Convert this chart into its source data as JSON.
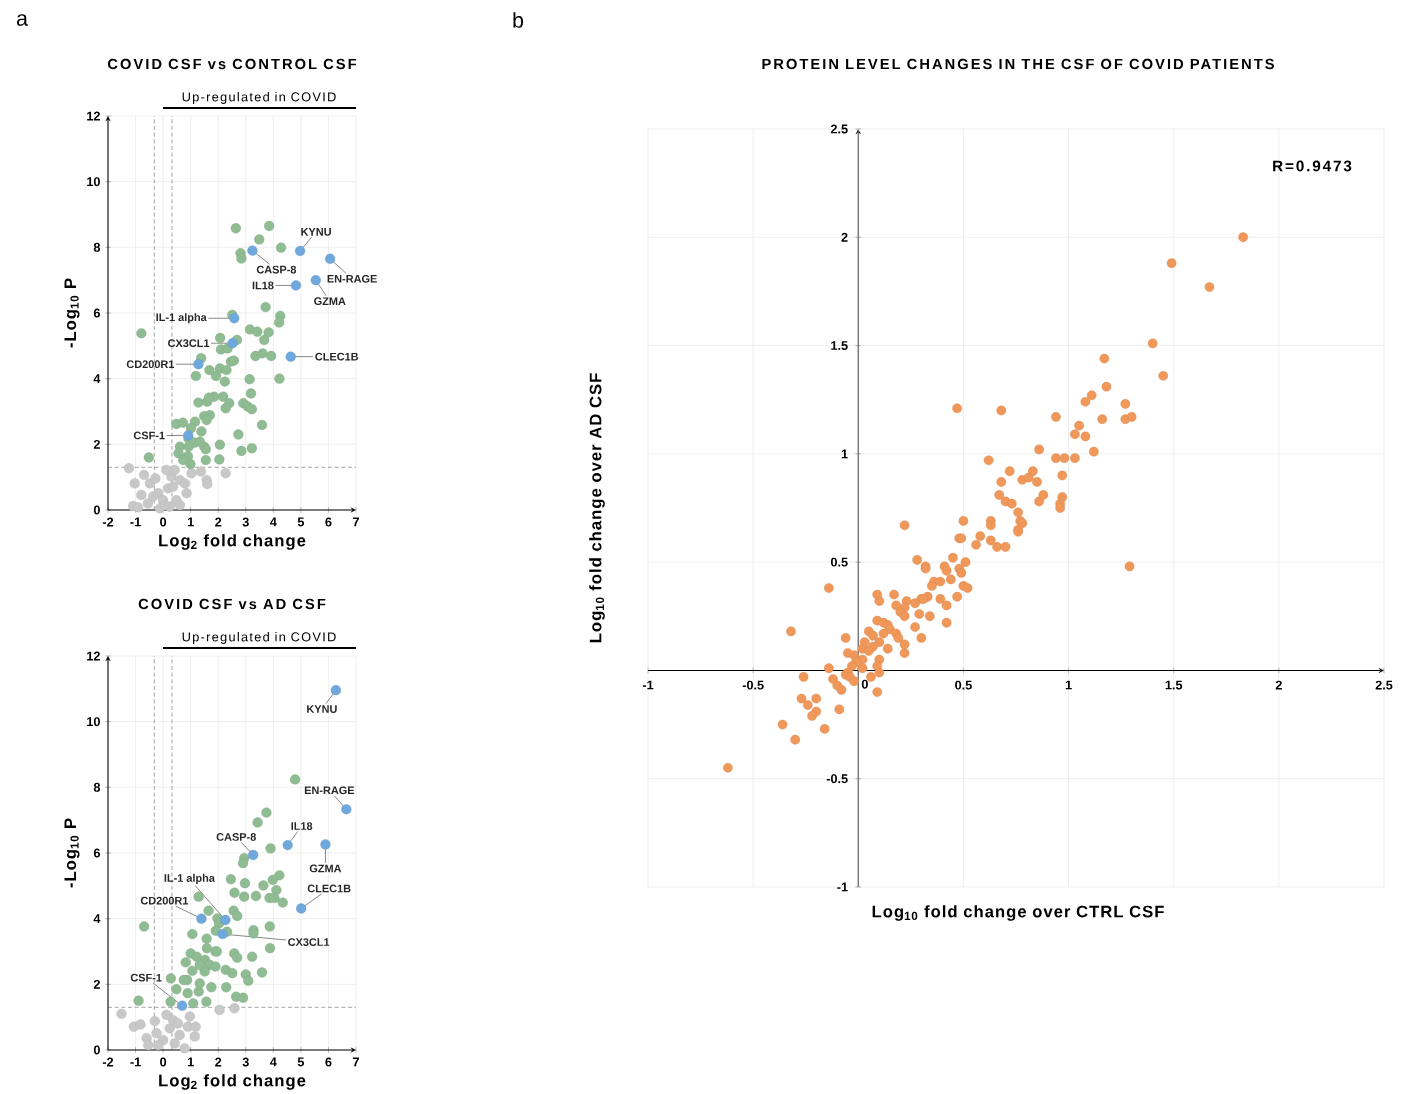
{
  "chart_data": [
    {
      "type": "scatter",
      "title": "COVID CSF vs CONTROL CSF",
      "xlabel": "Log$_{2}$ fold change",
      "ylabel": "-Log$_{10}$ P",
      "xlim": [
        -2,
        7
      ],
      "ylim": [
        0,
        12
      ],
      "xticks": [
        -2,
        -1,
        0,
        1,
        2,
        3,
        4,
        5,
        6,
        7
      ],
      "yticks": [
        0,
        2,
        4,
        6,
        8,
        10,
        12
      ],
      "grid": true,
      "marker": "circle",
      "ref_lines": [
        {
          "axis": "x",
          "value": -0.32,
          "color": "#555555",
          "line_style": "dashed"
        },
        {
          "axis": "x",
          "value": 0.32,
          "color": "#555555",
          "line_style": "dashed"
        },
        {
          "axis": "y",
          "value": 1.3,
          "color": "#555555",
          "line_style": "dashed"
        }
      ],
      "series": [
        {
          "color": "#c8c8c8",
          "x": [
            -1.24,
            -1.03,
            -0.69,
            -0.79,
            -1.09,
            -0.91,
            -0.48,
            -0.28,
            -0.55,
            -0.18,
            0.0,
            0.18,
            0.3,
            0.42,
            0.61,
            0.85,
            0.79,
            0.48,
            0.24,
            -0.12,
            0.12,
            1.37,
            1.58,
            1.6,
            2.27,
            1.03,
            -0.36,
            0.06,
            0.61,
            0.36
          ],
          "values": [
            1.27,
            0.81,
            1.07,
            0.46,
            0.12,
            0.08,
            0.81,
            0.96,
            0.2,
            0.51,
            0.3,
            0.66,
            1.02,
            1.22,
            0.91,
            0.51,
            0.81,
            0.3,
            0.1,
            0.05,
            1.22,
            1.17,
            0.91,
            0.79,
            1.12,
            1.12,
            0.41,
            0.15,
            0.15,
            0.71
          ]
        },
        {
          "color": "#8fbc93",
          "x": [
            2.64,
            3.85,
            3.49,
            4.28,
            2.81,
            2.84,
            3.72,
            4.25,
            4.21,
            2.51,
            3.15,
            3.42,
            3.83,
            3.67,
            2.68,
            2.07,
            2.1,
            2.34,
            -0.79,
            3.35,
            3.61,
            3.92,
            1.38,
            1.68,
            2.06,
            2.3,
            2.46,
            2.57,
            1.19,
            1.92,
            2.24,
            3.14,
            4.22,
            3.19,
            1.85,
            1.28,
            1.6,
            1.66,
            2.18,
            2.4,
            2.27,
            2.91,
            3.07,
            3.22,
            1.7,
            1.49,
            1.58,
            3.59,
            0.48,
            0.72,
            1.16,
            1.01,
            1.39,
            0.92,
            1.13,
            0.61,
            0.93,
            1.49,
            1.55,
            2.06,
            2.84,
            3.22,
            2.73,
            0.56,
            0.9,
            -0.52,
            1.55,
            2.04,
            0.99,
            0.73,
            1.33
          ],
          "values": [
            8.58,
            8.65,
            8.24,
            7.99,
            7.82,
            7.66,
            6.18,
            5.91,
            5.71,
            5.94,
            5.5,
            5.43,
            5.41,
            5.18,
            5.18,
            5.24,
            4.89,
            4.92,
            5.38,
            4.69,
            4.77,
            4.69,
            4.62,
            4.26,
            4.31,
            4.26,
            4.52,
            4.55,
            4.08,
            4.08,
            3.91,
            3.98,
            4.0,
            3.55,
            3.45,
            3.27,
            3.3,
            3.42,
            3.45,
            3.25,
            3.1,
            3.25,
            3.15,
            3.07,
            2.89,
            2.86,
            2.74,
            2.59,
            2.62,
            2.66,
            2.69,
            2.49,
            2.39,
            2.18,
            2.05,
            1.93,
            1.93,
            1.93,
            1.85,
            1.99,
            1.8,
            1.88,
            2.3,
            1.73,
            1.64,
            1.6,
            1.52,
            1.54,
            1.4,
            1.52,
            2.08
          ]
        },
        {
          "color": "#6fa8dc",
          "x": [
            4.97,
            3.24,
            6.06,
            5.54,
            4.82,
            2.58,
            2.52,
            4.63,
            1.28,
            0.91
          ],
          "values": [
            7.89,
            7.9,
            7.65,
            7.0,
            6.84,
            5.84,
            5.08,
            4.67,
            4.44,
            2.27
          ]
        }
      ],
      "annotations": [
        {
          "text": "KYNU",
          "x": 4.97,
          "y": 7.89
        },
        {
          "text": "CASP-8",
          "x": 3.24,
          "y": 7.9
        },
        {
          "text": "EN-RAGE",
          "x": 6.06,
          "y": 7.65
        },
        {
          "text": "GZMA",
          "x": 5.54,
          "y": 7.0
        },
        {
          "text": "IL18",
          "x": 4.82,
          "y": 6.84
        },
        {
          "text": "IL-1 alpha",
          "x": 2.58,
          "y": 5.84
        },
        {
          "text": "CX3CL1",
          "x": 2.52,
          "y": 5.08
        },
        {
          "text": "CLEC1B",
          "x": 4.63,
          "y": 4.67
        },
        {
          "text": "CD200R1",
          "x": 1.28,
          "y": 4.44
        },
        {
          "text": "CSF-1",
          "x": 0.91,
          "y": 2.27
        },
        "Up-regulated in COVID",
        "a"
      ]
    },
    {
      "type": "scatter",
      "title": "COVID CSF vs AD CSF",
      "xlabel": "Log$_{2}$ fold change",
      "ylabel": "-Log$_{10}$ P",
      "xlim": [
        -2,
        7
      ],
      "ylim": [
        0,
        12
      ],
      "xticks": [
        -2,
        -1,
        0,
        1,
        2,
        3,
        4,
        5,
        6,
        7
      ],
      "yticks": [
        0,
        2,
        4,
        6,
        8,
        10,
        12
      ],
      "grid": true,
      "marker": "circle",
      "ref_lines": [
        {
          "axis": "x",
          "value": -0.32,
          "color": "#555555",
          "line_style": "dashed"
        },
        {
          "axis": "x",
          "value": 0.32,
          "color": "#555555",
          "line_style": "dashed"
        },
        {
          "axis": "y",
          "value": 1.3,
          "color": "#555555",
          "line_style": "dashed"
        }
      ],
      "series": [
        {
          "color": "#c8c8c8",
          "x": [
            -1.51,
            -1.06,
            -0.82,
            -0.3,
            -0.6,
            -0.54,
            -0.24,
            0.0,
            0.24,
            0.36,
            0.54,
            0.78,
            0.9,
            1.15,
            1.18,
            0.97,
            2.05,
            2.59,
            0.12,
            -0.18,
            0.42,
            0.6
          ],
          "values": [
            1.1,
            0.71,
            0.78,
            0.88,
            0.36,
            0.15,
            0.51,
            0.3,
            0.66,
            0.91,
            0.81,
            0.05,
            0.71,
            0.41,
            0.71,
            1.02,
            1.22,
            1.27,
            1.07,
            0.15,
            0.2,
            0.46
          ]
        },
        {
          "color": "#8fbc93",
          "x": [
            4.79,
            3.75,
            3.43,
            3.9,
            2.94,
            2.9,
            2.46,
            4.22,
            3.98,
            3.64,
            2.97,
            2.59,
            2.94,
            3.37,
            3.86,
            4.11,
            4.04,
            4.34,
            1.29,
            1.65,
            2.56,
            2.69,
            1.97,
            2.03,
            1.91,
            2.32,
            3.28,
            3.28,
            3.87,
            -0.69,
            1.06,
            1.58,
            1.59,
            1.9,
            1.95,
            2.58,
            2.69,
            3.23,
            3.88,
            1.0,
            0.82,
            1.22,
            1.52,
            1.69,
            1.33,
            1.9,
            2.27,
            2.51,
            1.51,
            1.06,
            3.59,
            3.0,
            3.09,
            2.29,
            1.75,
            1.29,
            0.87,
            0.75,
            0.28,
            0.48,
            0.89,
            2.65,
            2.9,
            1.57,
            1.09,
            0.27,
            -0.89,
            1.33
          ],
          "values": [
            8.24,
            7.23,
            6.93,
            6.14,
            5.84,
            5.69,
            5.2,
            5.32,
            5.18,
            5.01,
            5.08,
            4.79,
            4.67,
            4.69,
            4.63,
            4.87,
            4.63,
            4.49,
            4.67,
            4.24,
            4.24,
            4.08,
            4.01,
            3.86,
            3.63,
            3.6,
            3.65,
            3.55,
            3.76,
            3.76,
            3.53,
            3.39,
            3.1,
            3.0,
            3.0,
            2.94,
            2.81,
            2.84,
            3.1,
            2.94,
            2.67,
            2.84,
            2.74,
            2.59,
            2.59,
            2.54,
            2.44,
            2.34,
            2.39,
            2.41,
            2.36,
            2.3,
            2.11,
            1.91,
            1.91,
            1.78,
            2.13,
            2.13,
            2.18,
            1.85,
            1.73,
            1.62,
            1.59,
            1.47,
            1.42,
            1.47,
            1.5,
            2.03
          ]
        },
        {
          "color": "#6fa8dc",
          "x": [
            6.27,
            3.27,
            6.65,
            5.89,
            4.52,
            2.26,
            2.16,
            5.01,
            1.39,
            0.69
          ],
          "values": [
            10.96,
            5.94,
            7.33,
            6.26,
            6.24,
            3.96,
            3.53,
            4.31,
            4.0,
            1.35
          ]
        }
      ],
      "annotations": [
        {
          "text": "KYNU",
          "x": 6.27,
          "y": 10.96
        },
        {
          "text": "CASP-8",
          "x": 3.27,
          "y": 5.94
        },
        {
          "text": "EN-RAGE",
          "x": 6.65,
          "y": 7.33
        },
        {
          "text": "GZMA",
          "x": 5.89,
          "y": 6.26
        },
        {
          "text": "IL18",
          "x": 4.52,
          "y": 6.24
        },
        {
          "text": "IL-1 alpha",
          "x": 2.26,
          "y": 3.96
        },
        {
          "text": "CX3CL1",
          "x": 2.16,
          "y": 3.53
        },
        {
          "text": "CLEC1B",
          "x": 5.01,
          "y": 4.31
        },
        {
          "text": "CD200R1",
          "x": 1.39,
          "y": 4.0
        },
        {
          "text": "CSF-1",
          "x": 0.69,
          "y": 1.35
        },
        "Up-regulated in COVID"
      ]
    },
    {
      "type": "scatter",
      "title": "PROTEIN LEVEL CHANGES IN THE CSF OF COVID PATIENTS",
      "xlabel": "Log$_{10}$ fold change over CTRL CSF",
      "ylabel": "Log$_{10}$ fold change over AD CSF",
      "xlim": [
        -1,
        2.5
      ],
      "ylim": [
        -1,
        2.5
      ],
      "xticks": [
        -1,
        -0.5,
        0,
        0.5,
        1,
        1.5,
        2,
        2.5
      ],
      "yticks": [
        -1,
        -0.5,
        0.5,
        1,
        1.5,
        2,
        2.5
      ],
      "grid": true,
      "marker": "circle",
      "series": [
        {
          "color": "#f0975a",
          "x": [
            1.83,
            1.49,
            1.67,
            1.4,
            1.17,
            1.45,
            1.18,
            1.11,
            1.08,
            1.27,
            0.47,
            0.68,
            0.94,
            1.16,
            1.27,
            1.3,
            1.05,
            1.03,
            1.08,
            1.12,
            0.86,
            0.94,
            0.98,
            1.03,
            0.62,
            0.72,
            0.83,
            0.97,
            0.68,
            0.78,
            0.81,
            0.85,
            0.67,
            0.88,
            0.97,
            0.7,
            0.73,
            0.86,
            0.96,
            0.96,
            0.76,
            0.22,
            0.5,
            0.63,
            0.63,
            0.77,
            0.78,
            0.76,
            0.63,
            0.58,
            0.66,
            0.7,
            0.56,
            0.76,
            0.48,
            0.49,
            1.29,
            0.28,
            0.32,
            0.32,
            0.45,
            0.41,
            0.42,
            0.48,
            0.49,
            0.51,
            0.36,
            0.35,
            0.39,
            0.44,
            0.5,
            0.52,
            0.47,
            0.33,
            0.39,
            0.3,
            0.31,
            0.23,
            0.27,
            0.22,
            0.18,
            0.09,
            0.17,
            0.1,
            0.2,
            0.22,
            0.29,
            0.34,
            0.42,
            0.42,
            0.27,
            0.3,
            -0.14,
            -0.32,
            -0.06,
            0.09,
            0.12,
            0.14,
            0.15,
            0.05,
            0.07,
            0.12,
            0.18,
            0.19,
            0.03,
            0.1,
            0.07,
            0.14,
            0.22,
            0.22,
            0.02,
            0.05,
            -0.02,
            -0.05,
            0.1,
            0.09,
            0.02,
            -0.01,
            -0.03,
            0.02,
            -0.05,
            -0.06,
            -0.04,
            0.06,
            0.1,
            -0.02,
            -0.14,
            -0.12,
            -0.26,
            -0.1,
            -0.08,
            0.09,
            -0.27,
            -0.2,
            -0.24,
            -0.2,
            -0.22,
            -0.09,
            -0.36,
            -0.16,
            -0.3,
            -0.62
          ],
          "values": [
            2.0,
            1.88,
            1.77,
            1.51,
            1.44,
            1.36,
            1.31,
            1.27,
            1.24,
            1.23,
            1.21,
            1.2,
            1.17,
            1.16,
            1.16,
            1.17,
            1.13,
            1.09,
            1.08,
            1.01,
            1.02,
            0.98,
            0.98,
            0.98,
            0.97,
            0.92,
            0.92,
            0.9,
            0.87,
            0.88,
            0.89,
            0.87,
            0.81,
            0.81,
            0.8,
            0.78,
            0.77,
            0.78,
            0.77,
            0.75,
            0.73,
            0.67,
            0.69,
            0.69,
            0.67,
            0.69,
            0.68,
            0.65,
            0.6,
            0.62,
            0.57,
            0.57,
            0.58,
            0.64,
            0.61,
            0.61,
            0.48,
            0.51,
            0.48,
            0.47,
            0.52,
            0.48,
            0.46,
            0.47,
            0.45,
            0.5,
            0.41,
            0.39,
            0.41,
            0.42,
            0.39,
            0.38,
            0.34,
            0.34,
            0.33,
            0.33,
            0.33,
            0.32,
            0.31,
            0.29,
            0.3,
            0.35,
            0.35,
            0.32,
            0.27,
            0.25,
            0.26,
            0.25,
            0.3,
            0.22,
            0.2,
            0.15,
            0.38,
            0.18,
            0.15,
            0.23,
            0.22,
            0.21,
            0.19,
            0.18,
            0.16,
            0.17,
            0.17,
            0.15,
            0.13,
            0.13,
            0.11,
            0.1,
            0.12,
            0.08,
            0.1,
            0.09,
            0.07,
            0.08,
            0.05,
            0.02,
            0.05,
            0.04,
            0.02,
            0.01,
            -0.01,
            -0.02,
            -0.03,
            -0.03,
            -0.01,
            -0.05,
            0.01,
            -0.04,
            -0.03,
            -0.07,
            -0.09,
            -0.1,
            -0.13,
            -0.13,
            -0.16,
            -0.19,
            -0.21,
            -0.18,
            -0.25,
            -0.27,
            -0.32,
            -0.45
          ]
        }
      ],
      "annotations": [
        "b",
        "R=0.9473"
      ]
    }
  ]
}
